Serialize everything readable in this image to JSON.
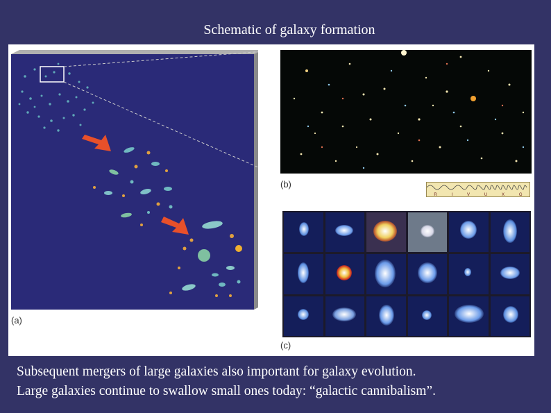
{
  "slide": {
    "title": "Schematic of galaxy formation",
    "caption_line1": "Subsequent mergers of large galaxies also important for galaxy evolution.",
    "caption_line2": "Large galaxies continue to swallow small ones today: “galactic cannibalism”."
  },
  "figure": {
    "panel_a_label": "(a)",
    "panel_b_label": "(b)",
    "panel_c_label": "(c)",
    "spectrum_bands": [
      "R",
      "I",
      "V",
      "U",
      "X",
      "G"
    ]
  },
  "colors": {
    "background": "#333366",
    "panel_a_background": "#2a2a78",
    "arrow": "#e8502a"
  }
}
